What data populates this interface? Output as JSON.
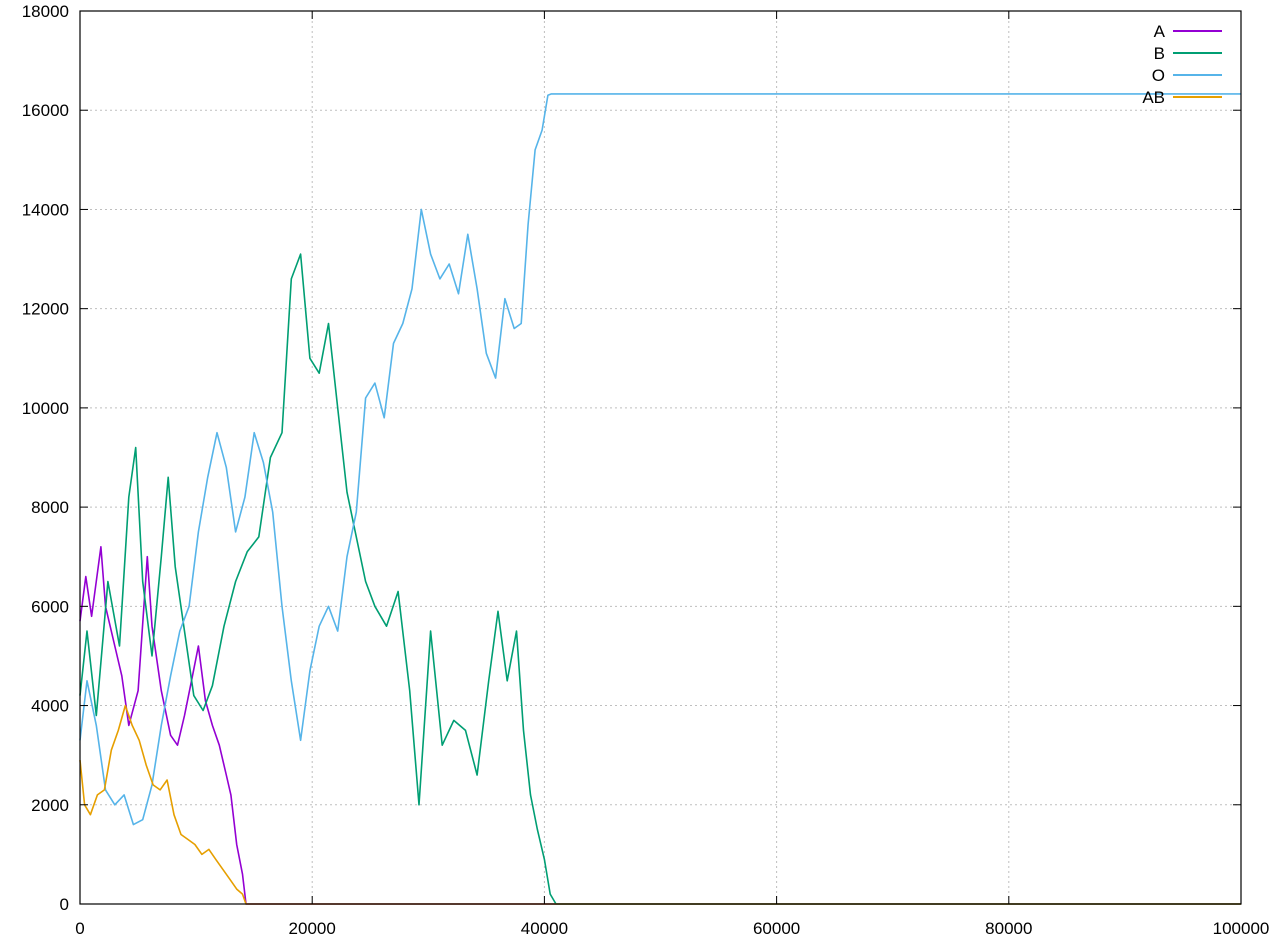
{
  "chart_data": {
    "type": "line",
    "title": "",
    "xlabel": "",
    "ylabel": "",
    "xlim": [
      0,
      100000
    ],
    "ylim": [
      0,
      18000
    ],
    "grid": true,
    "legend_position": "top-right",
    "x_ticks": [
      "0",
      "20000",
      "40000",
      "60000",
      "80000",
      "100000"
    ],
    "y_ticks": [
      "0",
      "2000",
      "4000",
      "6000",
      "8000",
      "10000",
      "12000",
      "14000",
      "16000",
      "18000"
    ],
    "series": [
      {
        "name": "A",
        "color": "#9400d3",
        "x": [
          0,
          500,
          1000,
          1800,
          2200,
          3000,
          3600,
          4200,
          5000,
          5800,
          6200,
          7000,
          7800,
          8400,
          9000,
          9600,
          10200,
          10800,
          11400,
          12000,
          12600,
          13000,
          13500,
          14000,
          14300,
          20000,
          40000,
          60000,
          80000,
          100000
        ],
        "y": [
          5700,
          6600,
          5800,
          7200,
          6000,
          5200,
          4600,
          3600,
          4300,
          7000,
          5600,
          4300,
          3400,
          3200,
          3800,
          4500,
          5200,
          4100,
          3600,
          3200,
          2600,
          2200,
          1200,
          600,
          0,
          0,
          0,
          0,
          0,
          0
        ]
      },
      {
        "name": "B",
        "color": "#009e73",
        "x": [
          0,
          600,
          1400,
          2400,
          3400,
          4200,
          4800,
          5400,
          6200,
          7000,
          7600,
          8200,
          9000,
          9800,
          10600,
          11400,
          12400,
          13400,
          14400,
          15400,
          16400,
          17400,
          18200,
          19000,
          19800,
          20600,
          21400,
          22200,
          23000,
          23800,
          24600,
          25400,
          26400,
          27400,
          28400,
          29200,
          30200,
          31200,
          32200,
          33200,
          34200,
          35200,
          36000,
          36800,
          37600,
          38200,
          38800,
          39400,
          40000,
          40500,
          41000,
          60000,
          80000,
          100000
        ],
        "y": [
          4200,
          5500,
          3800,
          6500,
          5200,
          8200,
          9200,
          6500,
          5000,
          7000,
          8600,
          6800,
          5500,
          4200,
          3900,
          4400,
          5600,
          6500,
          7100,
          7400,
          9000,
          9500,
          12600,
          13100,
          11000,
          10700,
          11700,
          10000,
          8300,
          7400,
          6500,
          6000,
          5600,
          6300,
          4300,
          2000,
          5500,
          3200,
          3700,
          3500,
          2600,
          4500,
          5900,
          4500,
          5500,
          3500,
          2200,
          1500,
          900,
          200,
          0,
          0,
          0,
          0
        ]
      },
      {
        "name": "O",
        "color": "#56b4e9",
        "x": [
          0,
          600,
          1400,
          2200,
          3000,
          3800,
          4600,
          5400,
          6200,
          7000,
          7800,
          8600,
          9400,
          10200,
          11000,
          11800,
          12600,
          13400,
          14200,
          15000,
          15800,
          16600,
          17400,
          18200,
          19000,
          19800,
          20600,
          21400,
          22200,
          23000,
          23800,
          24600,
          25400,
          26200,
          27000,
          27800,
          28600,
          29400,
          30200,
          31000,
          31800,
          32600,
          33400,
          34200,
          35000,
          35800,
          36600,
          37400,
          38000,
          38600,
          39200,
          39800,
          40300,
          40600,
          60000,
          80000,
          100000
        ],
        "y": [
          3300,
          4500,
          3600,
          2300,
          2000,
          2200,
          1600,
          1700,
          2400,
          3600,
          4600,
          5500,
          6000,
          7500,
          8600,
          9500,
          8800,
          7500,
          8200,
          9500,
          8900,
          7900,
          6000,
          4500,
          3300,
          4700,
          5600,
          6000,
          5500,
          7000,
          7900,
          10200,
          10500,
          9800,
          11300,
          11700,
          12400,
          14000,
          13100,
          12600,
          12900,
          12300,
          13500,
          12400,
          11100,
          10600,
          12200,
          11600,
          11700,
          13700,
          15200,
          15600,
          16300,
          16330,
          16330,
          16330,
          16330
        ]
      },
      {
        "name": "AB",
        "color": "#e69f00",
        "x": [
          0,
          400,
          900,
          1500,
          2100,
          2700,
          3300,
          3900,
          4500,
          5100,
          5700,
          6300,
          6900,
          7500,
          8100,
          8700,
          9300,
          9900,
          10500,
          11100,
          11700,
          12300,
          12900,
          13500,
          14000,
          14300,
          20000,
          40000,
          60000,
          80000,
          100000
        ],
        "y": [
          2900,
          2000,
          1800,
          2200,
          2300,
          3100,
          3500,
          4000,
          3600,
          3300,
          2800,
          2400,
          2300,
          2500,
          1800,
          1400,
          1300,
          1200,
          1000,
          1100,
          900,
          700,
          500,
          300,
          200,
          0,
          0,
          0,
          0,
          0,
          0
        ]
      }
    ]
  }
}
